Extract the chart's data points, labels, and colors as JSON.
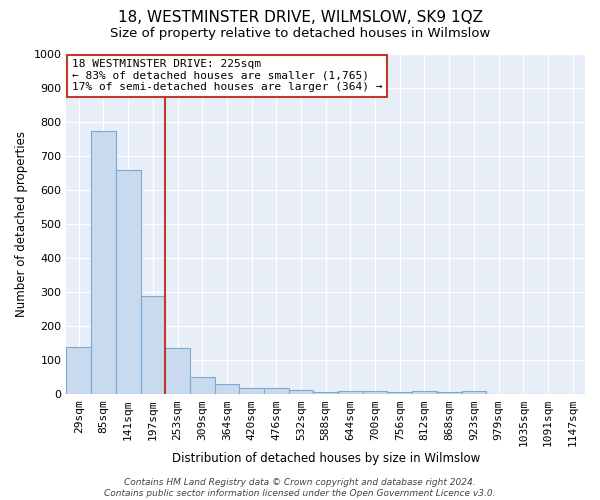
{
  "title": "18, WESTMINSTER DRIVE, WILMSLOW, SK9 1QZ",
  "subtitle": "Size of property relative to detached houses in Wilmslow",
  "xlabel": "Distribution of detached houses by size in Wilmslow",
  "ylabel": "Number of detached properties",
  "categories": [
    "29sqm",
    "85sqm",
    "141sqm",
    "197sqm",
    "253sqm",
    "309sqm",
    "364sqm",
    "420sqm",
    "476sqm",
    "532sqm",
    "588sqm",
    "644sqm",
    "700sqm",
    "756sqm",
    "812sqm",
    "868sqm",
    "923sqm",
    "979sqm",
    "1035sqm",
    "1091sqm",
    "1147sqm"
  ],
  "values": [
    140,
    775,
    660,
    290,
    135,
    52,
    30,
    18,
    18,
    12,
    8,
    10,
    10,
    8,
    10,
    8,
    10,
    0,
    0,
    0,
    0
  ],
  "bar_color": "#c9d9ee",
  "bar_edge_color": "#7aaad0",
  "vline_color": "#c0392b",
  "annotation_text": "18 WESTMINSTER DRIVE: 225sqm\n← 83% of detached houses are smaller (1,765)\n17% of semi-detached houses are larger (364) →",
  "annotation_box_color": "#ffffff",
  "annotation_box_edge_color": "#c0392b",
  "ylim": [
    0,
    1000
  ],
  "yticks": [
    0,
    100,
    200,
    300,
    400,
    500,
    600,
    700,
    800,
    900,
    1000
  ],
  "footer_line1": "Contains HM Land Registry data © Crown copyright and database right 2024.",
  "footer_line2": "Contains public sector information licensed under the Open Government Licence v3.0.",
  "bg_color": "#e8eef8",
  "fig_bg_color": "#ffffff",
  "title_fontsize": 11,
  "subtitle_fontsize": 9.5,
  "axis_label_fontsize": 8.5,
  "tick_fontsize": 8,
  "annotation_fontsize": 8,
  "footer_fontsize": 6.5
}
